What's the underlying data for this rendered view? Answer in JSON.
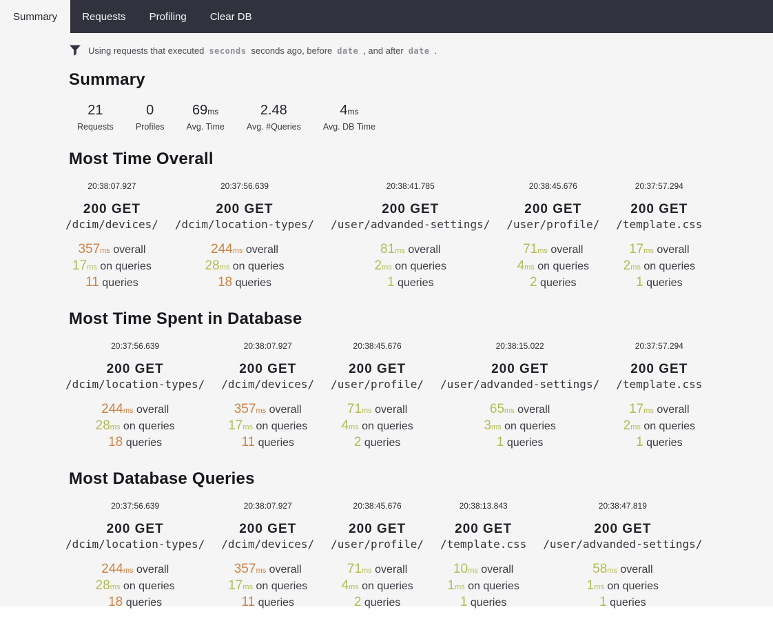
{
  "colors": {
    "navbar_bg": "#32323e",
    "page_bg": "#f5f5f5",
    "accent_orange": "#cd8343",
    "accent_green": "#b2bc51"
  },
  "navbar": {
    "tabs": [
      {
        "label": "Summary",
        "active": true
      },
      {
        "label": "Requests",
        "active": false
      },
      {
        "label": "Profiling",
        "active": false
      },
      {
        "label": "Clear DB",
        "active": false
      }
    ]
  },
  "filter": {
    "icon": "funnel-icon",
    "parts": [
      {
        "type": "text",
        "value": "Using requests that executed"
      },
      {
        "type": "token",
        "value": "seconds"
      },
      {
        "type": "text",
        "value": "seconds ago, before"
      },
      {
        "type": "token",
        "value": "date"
      },
      {
        "type": "text",
        "value": ", and after"
      },
      {
        "type": "token",
        "value": "date"
      },
      {
        "type": "text",
        "value": "."
      }
    ]
  },
  "summary": {
    "title": "Summary",
    "stats": [
      {
        "value": "21",
        "unit": "",
        "label": "Requests"
      },
      {
        "value": "0",
        "unit": "",
        "label": "Profiles"
      },
      {
        "value": "69",
        "unit": "ms",
        "label": "Avg. Time"
      },
      {
        "value": "2.48",
        "unit": "",
        "label": "Avg. #Queries"
      },
      {
        "value": "4",
        "unit": "ms",
        "label": "Avg. DB Time"
      }
    ]
  },
  "sections": [
    {
      "title": "Most Time Overall",
      "cards": [
        {
          "timestamp": "20:38:07.927",
          "status_method": "200 GET",
          "path": "/dcim/devices/",
          "stats": [
            {
              "value": "357",
              "unit": "ms",
              "label": "overall",
              "color": "orange"
            },
            {
              "value": "17",
              "unit": "ms",
              "label": "on queries",
              "color": "green"
            },
            {
              "value": "11",
              "unit": "",
              "label": "queries",
              "color": "orange"
            }
          ]
        },
        {
          "timestamp": "20:37:56.639",
          "status_method": "200 GET",
          "path": "/dcim/location-types/",
          "stats": [
            {
              "value": "244",
              "unit": "ms",
              "label": "overall",
              "color": "orange"
            },
            {
              "value": "28",
              "unit": "ms",
              "label": "on queries",
              "color": "green"
            },
            {
              "value": "18",
              "unit": "",
              "label": "queries",
              "color": "orange"
            }
          ]
        },
        {
          "timestamp": "20:38:41.785",
          "status_method": "200 GET",
          "path": "/user/advanded-settings/",
          "stats": [
            {
              "value": "81",
              "unit": "ms",
              "label": "overall",
              "color": "green"
            },
            {
              "value": "2",
              "unit": "ms",
              "label": "on queries",
              "color": "green"
            },
            {
              "value": "1",
              "unit": "",
              "label": "queries",
              "color": "green"
            }
          ]
        },
        {
          "timestamp": "20:38:45.676",
          "status_method": "200 GET",
          "path": "/user/profile/",
          "stats": [
            {
              "value": "71",
              "unit": "ms",
              "label": "overall",
              "color": "green"
            },
            {
              "value": "4",
              "unit": "ms",
              "label": "on queries",
              "color": "green"
            },
            {
              "value": "2",
              "unit": "",
              "label": "queries",
              "color": "green"
            }
          ]
        },
        {
          "timestamp": "20:37:57.294",
          "status_method": "200 GET",
          "path": "/template.css",
          "stats": [
            {
              "value": "17",
              "unit": "ms",
              "label": "overall",
              "color": "green"
            },
            {
              "value": "2",
              "unit": "ms",
              "label": "on queries",
              "color": "green"
            },
            {
              "value": "1",
              "unit": "",
              "label": "queries",
              "color": "green"
            }
          ]
        }
      ]
    },
    {
      "title": "Most Time Spent in Database",
      "cards": [
        {
          "timestamp": "20:37:56.639",
          "status_method": "200 GET",
          "path": "/dcim/location-types/",
          "stats": [
            {
              "value": "244",
              "unit": "ms",
              "label": "overall",
              "color": "orange"
            },
            {
              "value": "28",
              "unit": "ms",
              "label": "on queries",
              "color": "green"
            },
            {
              "value": "18",
              "unit": "",
              "label": "queries",
              "color": "orange"
            }
          ]
        },
        {
          "timestamp": "20:38:07.927",
          "status_method": "200 GET",
          "path": "/dcim/devices/",
          "stats": [
            {
              "value": "357",
              "unit": "ms",
              "label": "overall",
              "color": "orange"
            },
            {
              "value": "17",
              "unit": "ms",
              "label": "on queries",
              "color": "green"
            },
            {
              "value": "11",
              "unit": "",
              "label": "queries",
              "color": "orange"
            }
          ]
        },
        {
          "timestamp": "20:38:45.676",
          "status_method": "200 GET",
          "path": "/user/profile/",
          "stats": [
            {
              "value": "71",
              "unit": "ms",
              "label": "overall",
              "color": "green"
            },
            {
              "value": "4",
              "unit": "ms",
              "label": "on queries",
              "color": "green"
            },
            {
              "value": "2",
              "unit": "",
              "label": "queries",
              "color": "green"
            }
          ]
        },
        {
          "timestamp": "20:38:15.022",
          "status_method": "200 GET",
          "path": "/user/advanded-settings/",
          "stats": [
            {
              "value": "65",
              "unit": "ms",
              "label": "overall",
              "color": "green"
            },
            {
              "value": "3",
              "unit": "ms",
              "label": "on queries",
              "color": "green"
            },
            {
              "value": "1",
              "unit": "",
              "label": "queries",
              "color": "green"
            }
          ]
        },
        {
          "timestamp": "20:37:57.294",
          "status_method": "200 GET",
          "path": "/template.css",
          "stats": [
            {
              "value": "17",
              "unit": "ms",
              "label": "overall",
              "color": "green"
            },
            {
              "value": "2",
              "unit": "ms",
              "label": "on queries",
              "color": "green"
            },
            {
              "value": "1",
              "unit": "",
              "label": "queries",
              "color": "green"
            }
          ]
        }
      ]
    },
    {
      "title": "Most Database Queries",
      "cards": [
        {
          "timestamp": "20:37:56.639",
          "status_method": "200 GET",
          "path": "/dcim/location-types/",
          "stats": [
            {
              "value": "244",
              "unit": "ms",
              "label": "overall",
              "color": "orange"
            },
            {
              "value": "28",
              "unit": "ms",
              "label": "on queries",
              "color": "green"
            },
            {
              "value": "18",
              "unit": "",
              "label": "queries",
              "color": "orange"
            }
          ]
        },
        {
          "timestamp": "20:38:07.927",
          "status_method": "200 GET",
          "path": "/dcim/devices/",
          "stats": [
            {
              "value": "357",
              "unit": "ms",
              "label": "overall",
              "color": "orange"
            },
            {
              "value": "17",
              "unit": "ms",
              "label": "on queries",
              "color": "green"
            },
            {
              "value": "11",
              "unit": "",
              "label": "queries",
              "color": "orange"
            }
          ]
        },
        {
          "timestamp": "20:38:45.676",
          "status_method": "200 GET",
          "path": "/user/profile/",
          "stats": [
            {
              "value": "71",
              "unit": "ms",
              "label": "overall",
              "color": "green"
            },
            {
              "value": "4",
              "unit": "ms",
              "label": "on queries",
              "color": "green"
            },
            {
              "value": "2",
              "unit": "",
              "label": "queries",
              "color": "green"
            }
          ]
        },
        {
          "timestamp": "20:38:13.843",
          "status_method": "200 GET",
          "path": "/template.css",
          "stats": [
            {
              "value": "10",
              "unit": "ms",
              "label": "overall",
              "color": "green"
            },
            {
              "value": "1",
              "unit": "ms",
              "label": "on queries",
              "color": "green"
            },
            {
              "value": "1",
              "unit": "",
              "label": "queries",
              "color": "green"
            }
          ]
        },
        {
          "timestamp": "20:38:47.819",
          "status_method": "200 GET",
          "path": "/user/advanded-settings/",
          "stats": [
            {
              "value": "58",
              "unit": "ms",
              "label": "overall",
              "color": "green"
            },
            {
              "value": "1",
              "unit": "ms",
              "label": "on queries",
              "color": "green"
            },
            {
              "value": "1",
              "unit": "",
              "label": "queries",
              "color": "green"
            }
          ]
        }
      ]
    }
  ]
}
